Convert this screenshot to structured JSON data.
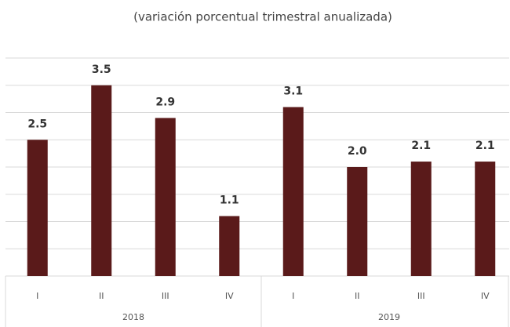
{
  "chart_data": {
    "type": "bar",
    "title": "(variación porcentual trimestral anualizada)",
    "categories": [
      "I",
      "II",
      "III",
      "IV",
      "I",
      "II",
      "III",
      "IV"
    ],
    "groups": [
      "2018",
      "2019"
    ],
    "values": [
      2.5,
      3.5,
      2.9,
      1.1,
      3.1,
      2.0,
      2.1,
      2.1
    ],
    "value_labels": [
      "2.5",
      "3.5",
      "2.9",
      "1.1",
      "3.1",
      "2.0",
      "2.1",
      "2.1"
    ],
    "color": "#5a1a1a",
    "ylim": [
      0,
      4
    ],
    "yticks": [
      0,
      0.5,
      1,
      1.5,
      2,
      2.5,
      3,
      3.5,
      4
    ],
    "grid": true
  }
}
